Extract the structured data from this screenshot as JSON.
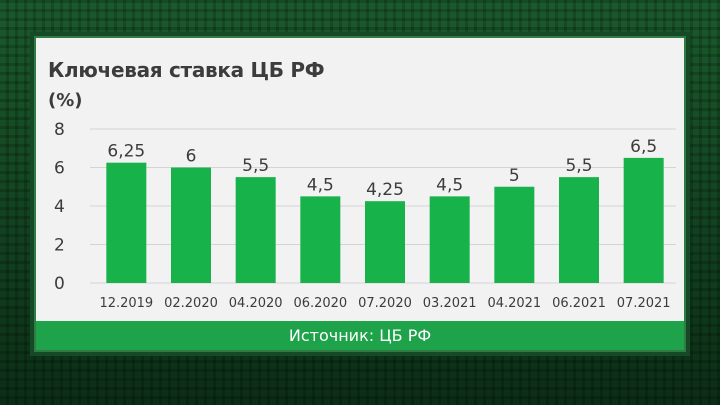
{
  "chart_data": {
    "type": "bar",
    "title": "Ключевая ставка ЦБ РФ",
    "ylabel": "(%)",
    "categories": [
      "12.2019",
      "02.2020",
      "04.2020",
      "06.2020",
      "07.2020",
      "03.2021",
      "04.2021",
      "06.2021",
      "07.2021"
    ],
    "values": [
      6.25,
      6,
      5.5,
      4.5,
      4.25,
      4.5,
      5,
      5.5,
      6.5
    ],
    "value_labels": [
      "6,25",
      "6",
      "5,5",
      "4,5",
      "4,25",
      "4,5",
      "5",
      "5,5",
      "6,5"
    ],
    "yticks": [
      "0",
      "2",
      "4",
      "6",
      "8"
    ],
    "ylim": [
      0,
      8
    ],
    "grid": true,
    "bar_color": "#17b24a"
  },
  "footer": {
    "source": "Источник: ЦБ РФ"
  }
}
